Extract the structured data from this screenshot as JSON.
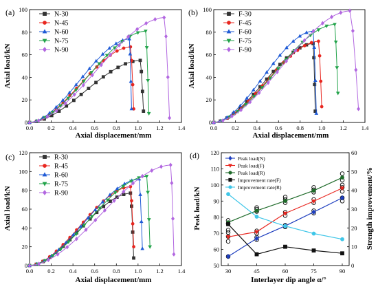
{
  "chart_data": [
    {
      "panel": "(a)",
      "type": "line",
      "xlabel": "Axial displacement/mm",
      "ylabel": "Axial load/kN",
      "xlim": [
        0,
        1.4
      ],
      "ylim": [
        0,
        100
      ],
      "xticks": [
        "0.0",
        "0.2",
        "0.4",
        "0.6",
        "0.8",
        "1.0",
        "1.2",
        "1.4"
      ],
      "yticks": [
        "0",
        "20",
        "40",
        "60",
        "80",
        "100"
      ],
      "legend_position": "top-left",
      "series": [
        {
          "name": "N-30",
          "color": "#333333",
          "marker": "square",
          "peak": [
            1.02,
            55
          ],
          "end": [
            1.05,
            10
          ]
        },
        {
          "name": "N-45",
          "color": "#e8261f",
          "marker": "circle",
          "peak": [
            0.93,
            67
          ],
          "end": [
            0.96,
            12
          ]
        },
        {
          "name": "N-60",
          "color": "#1f5bd6",
          "marker": "triangle",
          "peak": [
            0.92,
            74
          ],
          "end": [
            0.94,
            12
          ]
        },
        {
          "name": "N-75",
          "color": "#22a34a",
          "marker": "tri-down",
          "peak": [
            1.07,
            81
          ],
          "end": [
            1.1,
            8
          ]
        },
        {
          "name": "N-90",
          "color": "#b267e0",
          "marker": "diamond",
          "peak": [
            1.24,
            93
          ],
          "end": [
            1.29,
            4
          ]
        }
      ]
    },
    {
      "panel": "(b)",
      "type": "line",
      "xlabel": "Axial displacement/mm",
      "ylabel": "Axial load/kN",
      "xlim": [
        0,
        1.4
      ],
      "ylim": [
        0,
        100
      ],
      "xticks": [
        "0.0",
        "0.2",
        "0.4",
        "0.6",
        "0.8",
        "1.0",
        "1.2",
        "1.4"
      ],
      "yticks": [
        "0",
        "20",
        "40",
        "60",
        "80",
        "100"
      ],
      "legend_position": "top-left",
      "series": [
        {
          "name": "F-30",
          "color": "#333333",
          "marker": "square",
          "peak": [
            0.92,
            70
          ],
          "end": [
            0.94,
            10
          ]
        },
        {
          "name": "F-45",
          "color": "#e8261f",
          "marker": "circle",
          "peak": [
            0.97,
            72
          ],
          "end": [
            1.0,
            14
          ]
        },
        {
          "name": "F-60",
          "color": "#1f5bd6",
          "marker": "triangle",
          "peak": [
            0.92,
            81
          ],
          "end": [
            0.95,
            8
          ]
        },
        {
          "name": "F-75",
          "color": "#22a34a",
          "marker": "tri-down",
          "peak": [
            1.12,
            87
          ],
          "end": [
            1.15,
            26
          ]
        },
        {
          "name": "F-90",
          "color": "#b267e0",
          "marker": "diamond",
          "peak": [
            1.26,
            99
          ],
          "end": [
            1.34,
            12
          ]
        }
      ]
    },
    {
      "panel": "(c)",
      "type": "line",
      "xlabel": "Axial displacement/mm",
      "ylabel": "Axial load/kN",
      "xlim": [
        0,
        1.4
      ],
      "ylim": [
        0,
        120
      ],
      "xticks": [
        "0.0",
        "0.2",
        "0.4",
        "0.6",
        "0.8",
        "1.0",
        "1.2",
        "1.4"
      ],
      "yticks": [
        "0",
        "20",
        "40",
        "60",
        "80",
        "100",
        "120"
      ],
      "legend_position": "top-left",
      "series": [
        {
          "name": "R-30",
          "color": "#333333",
          "marker": "square",
          "peak": [
            0.93,
            77
          ],
          "end": [
            0.96,
            8
          ]
        },
        {
          "name": "R-45",
          "color": "#e8261f",
          "marker": "circle",
          "peak": [
            0.93,
            84
          ],
          "end": [
            0.96,
            20
          ]
        },
        {
          "name": "R-60",
          "color": "#1f5bd6",
          "marker": "triangle",
          "peak": [
            1.01,
            92
          ],
          "end": [
            1.04,
            18
          ]
        },
        {
          "name": "R-75",
          "color": "#22a34a",
          "marker": "tri-down",
          "peak": [
            1.08,
            95
          ],
          "end": [
            1.11,
            20
          ]
        },
        {
          "name": "R-90",
          "color": "#b267e0",
          "marker": "diamond",
          "peak": [
            1.3,
            107
          ],
          "end": [
            1.33,
            12
          ]
        }
      ]
    },
    {
      "panel": "(d)",
      "type": "line",
      "xlabel": "Interlayer dip angle α/°",
      "ylabel": "Peak load/kN",
      "y2label": "Strength improvement/%",
      "x": [
        30,
        45,
        60,
        75,
        90
      ],
      "xticks": [
        "30",
        "45",
        "60",
        "75",
        "90"
      ],
      "ylim": [
        50,
        120
      ],
      "yticks": [
        "50",
        "60",
        "70",
        "80",
        "90",
        "100",
        "110",
        "120"
      ],
      "y2lim": [
        0,
        60
      ],
      "y2ticks": [
        "0",
        "10",
        "20",
        "30",
        "40",
        "50",
        "60"
      ],
      "legend_position": "top-left",
      "series": [
        {
          "name": "Peak load(N)",
          "axis": "left",
          "color": "#1f3fbf",
          "marker": "diamond",
          "values": [
            55.6,
            66.8,
            74.6,
            83.2,
            92.0
          ]
        },
        {
          "name": "Peak load(F)",
          "axis": "left",
          "color": "#e8261f",
          "marker": "tri-down",
          "values": [
            67.8,
            70.9,
            82.4,
            89.9,
            98.0
          ]
        },
        {
          "name": "Peak load(R)",
          "axis": "left",
          "color": "#1f6b2a",
          "marker": "circle",
          "values": [
            76.8,
            84.0,
            90.1,
            96.5,
            104.6
          ]
        },
        {
          "name": "Improvement rate(F)",
          "axis": "right",
          "color": "#111111",
          "marker": "square",
          "values": [
            22,
            6,
            10,
            8,
            6.5
          ]
        },
        {
          "name": "Improvement rate(R)",
          "axis": "right",
          "color": "#3fc6e8",
          "marker": "circle",
          "values": [
            38,
            26,
            21,
            17,
            14
          ]
        }
      ],
      "scatter_points": [
        {
          "x": 30,
          "values": [
            55.6,
            65.0,
            68.0,
            70.5,
            72.0,
            76.0,
            78.0
          ]
        },
        {
          "x": 45,
          "values": [
            66.0,
            67.5,
            70.0,
            71.5,
            83.5,
            85.0,
            86.0
          ]
        },
        {
          "x": 60,
          "values": [
            74.0,
            75.0,
            81.0,
            83.0,
            89.0,
            91.0,
            92.5
          ]
        },
        {
          "x": 75,
          "values": [
            82.5,
            84.0,
            89.0,
            91.0,
            95.5,
            97.0,
            98.5
          ]
        },
        {
          "x": 90,
          "values": [
            90.0,
            92.0,
            96.0,
            98.5,
            100.0,
            103.0,
            107.0
          ]
        }
      ]
    }
  ]
}
